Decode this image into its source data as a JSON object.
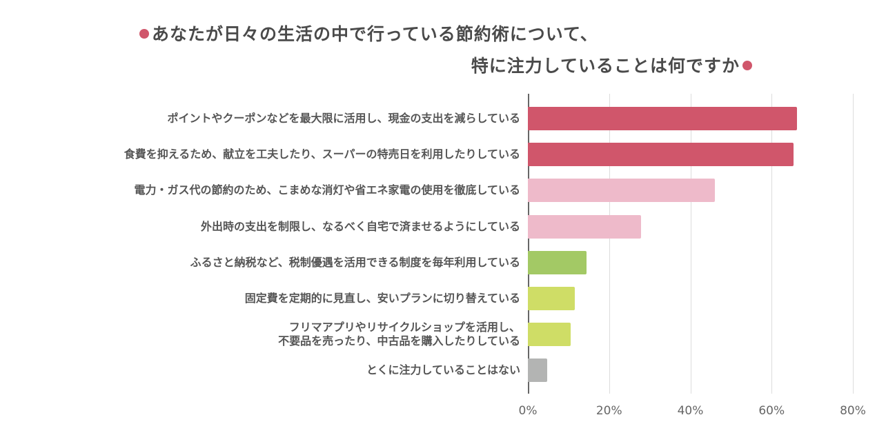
{
  "title": {
    "line1": "あなたが日々の生活の中で行っている節約術について、",
    "line2": "特に注力していることは何ですか",
    "dot_color": "#d0566b"
  },
  "chart_data": {
    "type": "bar",
    "orientation": "horizontal",
    "title": "あなたが日々の生活の中で行っている節約術について、特に注力していることは何ですか",
    "xlabel": "",
    "ylabel": "",
    "xlim": [
      0,
      80
    ],
    "x_ticks": [
      "0%",
      "20%",
      "40%",
      "60%",
      "80%"
    ],
    "grid": true,
    "legend": null,
    "categories": [
      "ポイントやクーポンなどを最大限に活用し、現金の支出を減らしている",
      "食費を抑えるため、献立を工夫したり、スーパーの特売日を利用したりしている",
      "電力・ガス代の節約のため、こまめな消灯や省エネ家電の使用を徹底している",
      "外出時の支出を制限し、なるべく自宅で済ませるようにしている",
      "ふるさと納税など、税制優遇を活用できる制度を毎年利用している",
      "固定費を定期的に見直し、安いプランに切り替えている",
      "フリマアプリやリサイクルショップを活用し、不要品を売ったり、中古品を購入したりしている",
      "とくに注力していることはない"
    ],
    "values": [
      66.2,
      65.4,
      46.1,
      27.9,
      14.5,
      11.6,
      10.5,
      4.8
    ],
    "colors": [
      "#d0566b",
      "#d0566b",
      "#eebaca",
      "#eebaca",
      "#a3c965",
      "#cfdd66",
      "#cfdd66",
      "#b3b4b3"
    ]
  },
  "labels": [
    [
      "ポイントやクーポンなどを最大限に活用し、現金の支出を減らしている"
    ],
    [
      "食費を抑えるため、献立を工夫したり、スーパーの特売日を利用したりしている"
    ],
    [
      "電力・ガス代の節約のため、こまめな消灯や省エネ家電の使用を徹底している"
    ],
    [
      "外出時の支出を制限し、なるべく自宅で済ませるようにしている"
    ],
    [
      "ふるさと納税など、税制優遇を活用できる制度を毎年利用している"
    ],
    [
      "固定費を定期的に見直し、安いプランに切り替えている"
    ],
    [
      "フリマアプリやリサイクルショップを活用し、",
      "不要品を売ったり、中古品を購入したりしている"
    ],
    [
      "とくに注力していることはない"
    ]
  ]
}
